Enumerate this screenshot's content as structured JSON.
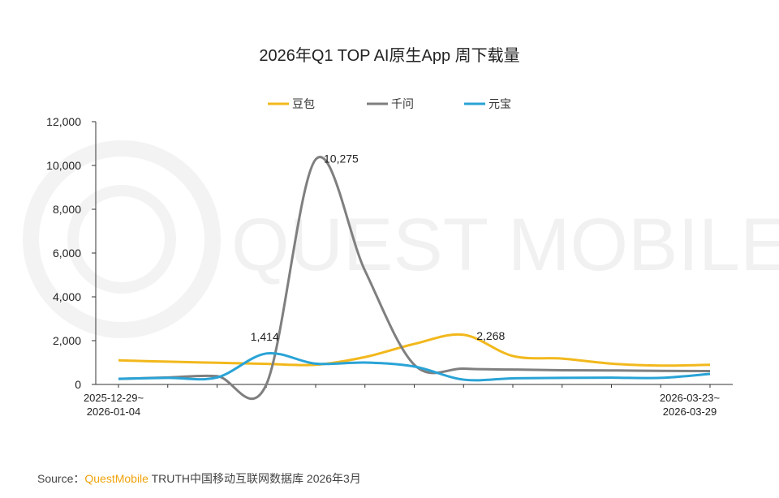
{
  "chart_data": {
    "type": "line",
    "title": "2026年Q1 TOP AI原生App 周下载量",
    "xlabel": "",
    "ylabel": "",
    "ylim": [
      0,
      12000
    ],
    "yticks": [
      "0",
      "2,000",
      "4,000",
      "6,000",
      "8,000",
      "10,000",
      "12,000"
    ],
    "x_start_label": [
      "2025-12-29~",
      "2026-01-04"
    ],
    "x_end_label": [
      "2026-03-23~",
      "2026-03-29"
    ],
    "legend_position": "top",
    "series": [
      {
        "name": "豆包",
        "color": "#f2b81c",
        "values": [
          1100,
          1040,
          990,
          940,
          900,
          1250,
          1850,
          2268,
          1300,
          1180,
          950,
          860,
          900
        ]
      },
      {
        "name": "千问",
        "color": "#7f7f7f",
        "values": [
          250,
          320,
          380,
          0,
          10275,
          5200,
          900,
          720,
          680,
          650,
          640,
          620,
          610
        ]
      },
      {
        "name": "元宝",
        "color": "#29a3d6",
        "values": [
          260,
          300,
          320,
          1414,
          950,
          1000,
          820,
          220,
          280,
          300,
          310,
          300,
          480
        ]
      }
    ],
    "annotations": [
      {
        "series": "千问",
        "index": 4,
        "text": "10,275"
      },
      {
        "series": "豆包",
        "index": 7,
        "text": "2,268"
      },
      {
        "series": "元宝",
        "index": 3,
        "text": "1,414"
      }
    ],
    "grid": false,
    "watermark": "QUEST MOBILE"
  },
  "footer": {
    "source_label": "Source：",
    "brand": "QuestMobile",
    "text": " TRUTH中国移动互联网数据库 2026年3月"
  }
}
